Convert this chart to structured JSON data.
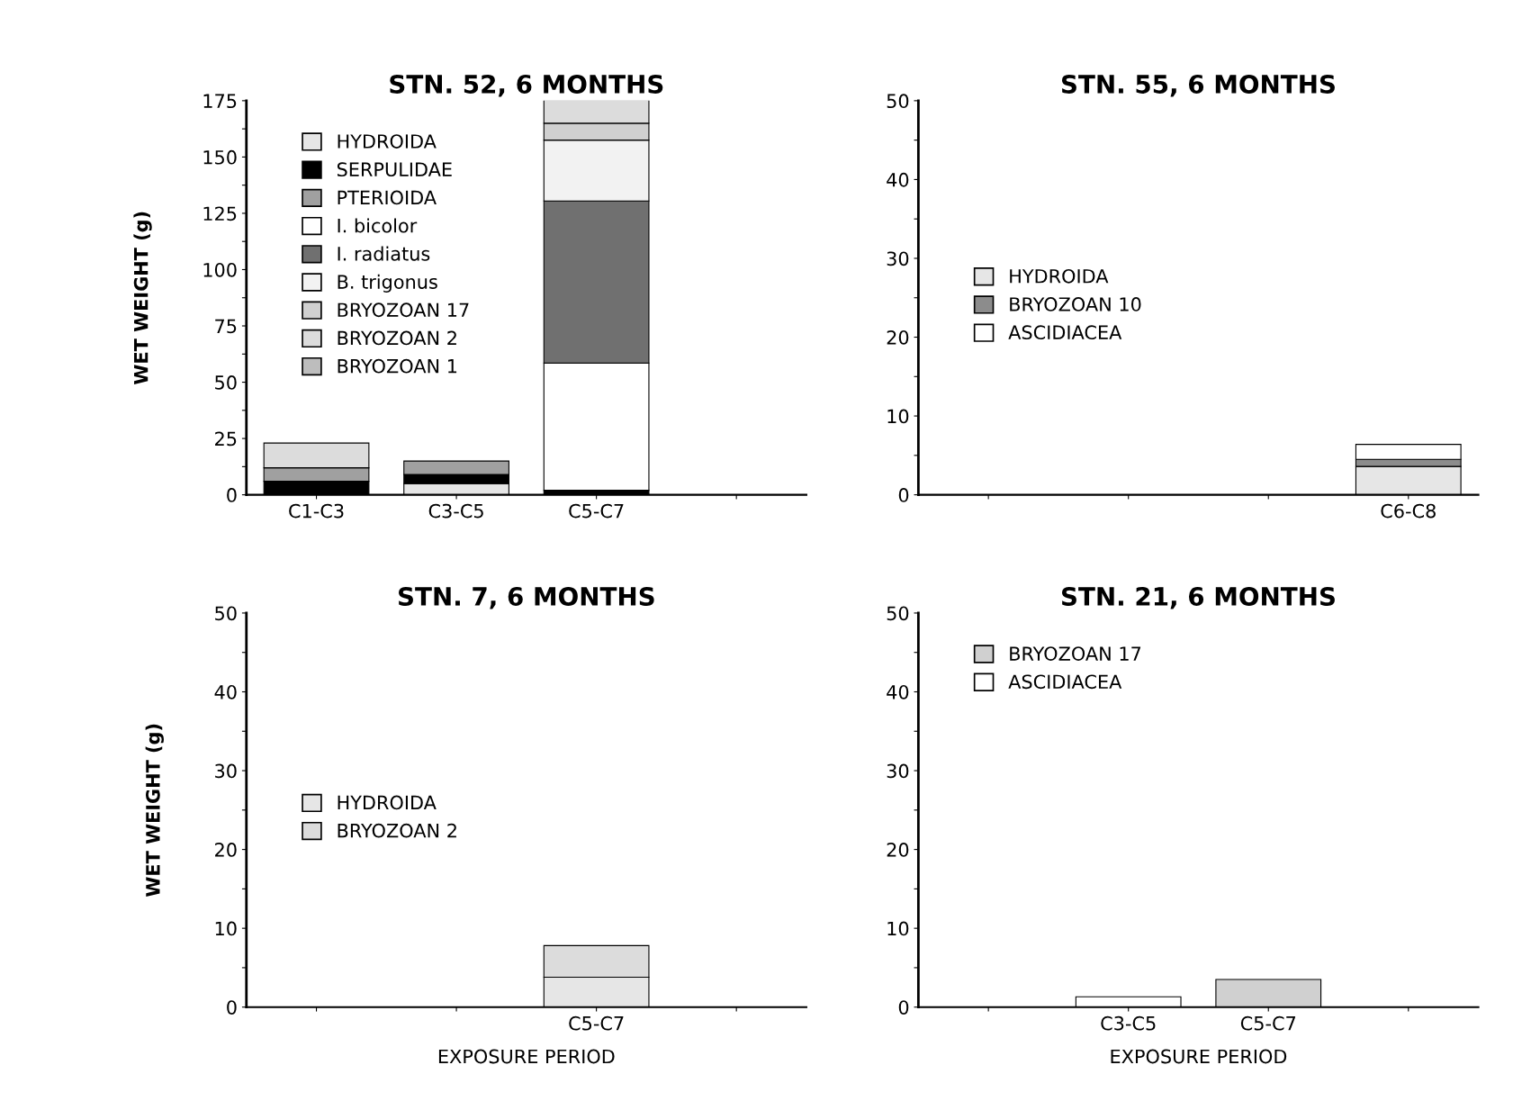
{
  "chart_data": [
    {
      "type": "bar",
      "title": "STN. 52, 6 MONTHS",
      "ylabel": "WET WEIGHT (g)",
      "stacked": true,
      "legend": "top left",
      "grid": false,
      "categories": [
        "C1-C3",
        "C3-C5",
        "C5-C7",
        null
      ],
      "ylim": [
        0,
        175
      ],
      "yticks": [
        0,
        {
          "value": 12.5,
          "label": null
        },
        25,
        {
          "value": 37.5,
          "label": null
        },
        50,
        {
          "value": 62.5,
          "label": null
        },
        75,
        {
          "value": 87.5,
          "label": null
        },
        100,
        {
          "value": 112.5,
          "label": null
        },
        125,
        {
          "value": 137.5,
          "label": null
        },
        150,
        {
          "value": 162.5,
          "label": null
        },
        175
      ],
      "series": [
        {
          "name": "HYDROIDA",
          "color": "#e6e6e6",
          "values": [
            null,
            5,
            null,
            null
          ]
        },
        {
          "name": "SERPULIDAE",
          "color": "#000000",
          "values": [
            6,
            4,
            2,
            null
          ]
        },
        {
          "name": "PTERIOIDA",
          "color": "#a0a0a0",
          "values": [
            6,
            6,
            null,
            null
          ]
        },
        {
          "name": "I. bicolor",
          "color": "#ffffff",
          "values": [
            null,
            null,
            56.5,
            null
          ]
        },
        {
          "name": "I. radiatus",
          "color": "#707070",
          "values": [
            null,
            null,
            72,
            null
          ]
        },
        {
          "name": "B. trigonus",
          "color": "#f2f2f2",
          "values": [
            null,
            null,
            27,
            null
          ]
        },
        {
          "name": "BRYOZOAN 17",
          "color": "#d0d0d0",
          "values": [
            null,
            null,
            7.5,
            null
          ]
        },
        {
          "name": "BRYOZOAN 2",
          "color": "#dcdcdc",
          "values": [
            11,
            null,
            10.5,
            null
          ]
        },
        {
          "name": "BRYOZOAN 1",
          "color": "#bdbdbd",
          "values": [
            null,
            null,
            null,
            null
          ]
        }
      ]
    },
    {
      "type": "bar",
      "title": "STN. 55, 6 MONTHS",
      "stacked": true,
      "legend": "left",
      "grid": false,
      "categories": [
        null,
        null,
        null,
        "C6-C8"
      ],
      "ylim": [
        0,
        50
      ],
      "yticks": [
        0,
        {
          "value": 5,
          "label": null
        },
        10,
        {
          "value": 15,
          "label": null
        },
        20,
        {
          "value": 25,
          "label": null
        },
        30,
        {
          "value": 35,
          "label": null
        },
        40,
        {
          "value": 45,
          "label": null
        },
        50
      ],
      "series": [
        {
          "name": "HYDROIDA",
          "color": "#e6e6e6",
          "values": [
            null,
            null,
            null,
            3.6
          ]
        },
        {
          "name": "BRYOZOAN 10",
          "color": "#8c8c8c",
          "values": [
            null,
            null,
            null,
            0.9
          ]
        },
        {
          "name": "ASCIDIACEA",
          "color": "#ffffff",
          "values": [
            null,
            null,
            null,
            1.9
          ]
        }
      ]
    },
    {
      "type": "bar",
      "title": "STN. 7, 6 MONTHS",
      "ylabel": "WET WEIGHT (g)",
      "xlabel": "EXPOSURE PERIOD",
      "stacked": true,
      "legend": "left",
      "grid": false,
      "categories": [
        null,
        null,
        "C5-C7",
        null
      ],
      "ylim": [
        0,
        50
      ],
      "yticks": [
        0,
        {
          "value": 5,
          "label": null
        },
        10,
        {
          "value": 15,
          "label": null
        },
        20,
        {
          "value": 25,
          "label": null
        },
        30,
        {
          "value": 35,
          "label": null
        },
        40,
        {
          "value": 45,
          "label": null
        },
        50
      ],
      "series": [
        {
          "name": "HYDROIDA",
          "color": "#e6e6e6",
          "values": [
            null,
            null,
            3.8,
            null
          ]
        },
        {
          "name": "BRYOZOAN 2",
          "color": "#dcdcdc",
          "values": [
            null,
            null,
            4.0,
            null
          ]
        }
      ]
    },
    {
      "type": "bar",
      "title": "STN. 21, 6 MONTHS",
      "xlabel": "EXPOSURE PERIOD",
      "stacked": true,
      "legend": "top left",
      "grid": false,
      "categories": [
        null,
        "C3-C5",
        "C5-C7",
        null
      ],
      "ylim": [
        0,
        50
      ],
      "yticks": [
        0,
        {
          "value": 5,
          "label": null
        },
        10,
        {
          "value": 15,
          "label": null
        },
        20,
        {
          "value": 25,
          "label": null
        },
        30,
        {
          "value": 35,
          "label": null
        },
        40,
        {
          "value": 45,
          "label": null
        },
        50
      ],
      "series": [
        {
          "name": "BRYOZOAN 17",
          "color": "#d0d0d0",
          "values": [
            null,
            null,
            3.5,
            null
          ]
        },
        {
          "name": "ASCIDIACEA",
          "color": "#ffffff",
          "values": [
            null,
            1.3,
            null,
            null
          ]
        }
      ]
    }
  ]
}
